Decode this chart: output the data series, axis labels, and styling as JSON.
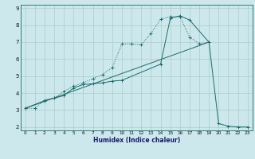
{
  "xlabel": "Humidex (Indice chaleur)",
  "bg_color": "#cce8ec",
  "grid_color": "#aacccc",
  "line_color": "#1a6b6b",
  "xlim": [
    -0.5,
    23.5
  ],
  "ylim": [
    1.8,
    9.2
  ],
  "yticks": [
    2,
    3,
    4,
    5,
    6,
    7,
    8,
    9
  ],
  "xticks": [
    0,
    1,
    2,
    3,
    4,
    5,
    6,
    7,
    8,
    9,
    10,
    11,
    12,
    13,
    14,
    15,
    16,
    17,
    18,
    19,
    20,
    21,
    22,
    23
  ],
  "line1_x": [
    0,
    1,
    2,
    3,
    4,
    5,
    6,
    7,
    8,
    9,
    10,
    11,
    12,
    13,
    14,
    15,
    16,
    17,
    18,
    19
  ],
  "line1_y": [
    3.1,
    3.1,
    3.6,
    3.7,
    4.1,
    4.4,
    4.6,
    4.85,
    5.1,
    5.5,
    6.9,
    6.9,
    6.85,
    7.5,
    8.35,
    8.5,
    8.5,
    7.3,
    6.9,
    7.0
  ],
  "line2_x": [
    0,
    2,
    3,
    4,
    5,
    6,
    7,
    8,
    9,
    10,
    14,
    15,
    16,
    17,
    19,
    20,
    21,
    22,
    23
  ],
  "line2_y": [
    3.1,
    3.55,
    3.7,
    3.85,
    4.3,
    4.5,
    4.55,
    4.6,
    4.7,
    4.75,
    5.7,
    8.4,
    8.55,
    8.3,
    7.0,
    2.2,
    2.05,
    2.0,
    2.0
  ],
  "line3_x": [
    0,
    19
  ],
  "line3_y": [
    3.1,
    7.0
  ]
}
